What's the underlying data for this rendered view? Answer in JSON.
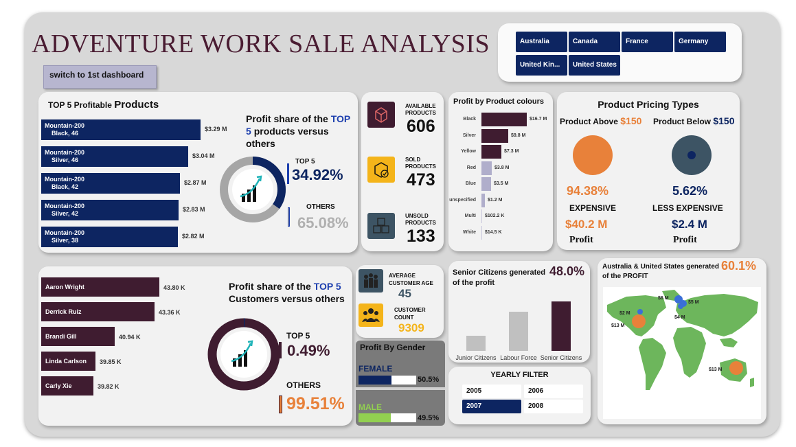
{
  "title": "ADVENTURE WORK SALE ANALYSIS",
  "switch_label": "switch to 1st dashboard",
  "countries": [
    "Australia",
    "Canada",
    "France",
    "Germany",
    "United Kin...",
    "United States"
  ],
  "products": {
    "heading_pre": "TOP 5 Profitable",
    "heading_strong": "Products",
    "items": [
      {
        "name": "Mountain-200",
        "sub": "Black, 46",
        "value": "$3.29 M"
      },
      {
        "name": "Mountain-200",
        "sub": "Silver, 46",
        "value": "$3.04 M"
      },
      {
        "name": "Mountain-200",
        "sub": "Black, 42",
        "value": "$2.87 M"
      },
      {
        "name": "Mountain-200",
        "sub": "Silver, 42",
        "value": "$2.83 M"
      },
      {
        "name": "Mountain-200",
        "sub": "Silver, 38",
        "value": "$2.82 M"
      }
    ],
    "values_m": [
      3.29,
      3.04,
      2.87,
      2.83,
      2.82
    ],
    "share_title_1": "Profit share of the",
    "share_title_top": "TOP 5",
    "share_title_2": "products versus others",
    "top_label": "TOP 5",
    "top_value": "34.92%",
    "others_label": "OTHERS",
    "others_value": "65.08%",
    "top_fraction": 0.3492
  },
  "stock": {
    "available_label": "AVAILABLE PRODUCTS",
    "available_value": "606",
    "sold_label": "SOLD PRODUCTS",
    "sold_value": "473",
    "unsold_label": "UNSOLD PRODUCTS",
    "unsold_value": "133"
  },
  "colours": {
    "title": "Profit by Product colours",
    "items": [
      {
        "name": "Black",
        "value": "$16.7 M",
        "num": 16.7
      },
      {
        "name": "Silver",
        "value": "$9.8 M",
        "num": 9.8
      },
      {
        "name": "Yellow",
        "value": "$7.3 M",
        "num": 7.3
      },
      {
        "name": "Red",
        "value": "$3.8 M",
        "num": 3.8
      },
      {
        "name": "Blue",
        "value": "$3.5 M",
        "num": 3.5
      },
      {
        "name": "unspecified",
        "value": "$1.2 M",
        "num": 1.2
      },
      {
        "name": "Multi",
        "value": "$102.2 K",
        "num": 0.1022
      },
      {
        "name": "White",
        "value": "$14.5 K",
        "num": 0.0145
      }
    ]
  },
  "pricing": {
    "title": "Product Pricing Types",
    "above_label": "Product Above",
    "above_price": "$150",
    "below_label": "Product Below",
    "below_price": "$150",
    "above_pct": "94.38%",
    "above_type": "EXPENSIVE",
    "above_profit": "$40.2 M",
    "below_pct": "5.62%",
    "below_type": "LESS EXPENSIVE",
    "below_profit": "$2.4 M",
    "profit_label": "Profit"
  },
  "customers": {
    "items": [
      {
        "name": "Aaron Wright",
        "value": "43.80 K",
        "num": 43.8
      },
      {
        "name": "Derrick Ruiz",
        "value": "43.36 K",
        "num": 43.36
      },
      {
        "name": "Brandi Gill",
        "value": "40.94 K",
        "num": 40.94
      },
      {
        "name": "Linda Carlson",
        "value": "39.85 K",
        "num": 39.85
      },
      {
        "name": "Carly Xie",
        "value": "39.82 K",
        "num": 39.82
      }
    ],
    "share_title_1": "Profit share of the",
    "share_title_top": "TOP 5",
    "share_title_2": "Customers versus others",
    "top_label": "TOP 5",
    "top_value": "0.49%",
    "others_label": "OTHERS",
    "others_value": "99.51%",
    "top_fraction": 0.0049
  },
  "age": {
    "label": "AVERAGE CUSTOMER AGE",
    "value": "45"
  },
  "count": {
    "label": "CUSTOMER COUNT",
    "value": "9309"
  },
  "gender": {
    "title": "Profit By Gender",
    "female_label": "FEMALE",
    "female_value": "50.5%",
    "female_frac": 0.505,
    "male_label": "MALE",
    "male_value": "49.5%",
    "male_frac": 0.495
  },
  "senior": {
    "title": "Senior Citizens generated",
    "title2": "of the profit",
    "value": "48.0%",
    "categories": [
      "Junior Citizens",
      "Labour Force",
      "Senior Citizens"
    ],
    "levels": [
      0.3,
      0.79,
      1.0
    ]
  },
  "yearly": {
    "title": "YEARLY FILTER",
    "years": [
      "2005",
      "2006",
      "2007",
      "2008"
    ],
    "selected": "2007"
  },
  "map": {
    "title": "Australia & United States generated",
    "title2": "of the PROFIT",
    "value": "60.1%",
    "labels": [
      "$6 M",
      "$5 M",
      "$2 M",
      "$4 M",
      "$13 M",
      "$13 M"
    ]
  },
  "colors": {
    "navy": "#0d2561",
    "maroon": "#3f1c30",
    "orange": "#e8813a",
    "slate": "#3d5464",
    "green": "#6db65c"
  }
}
